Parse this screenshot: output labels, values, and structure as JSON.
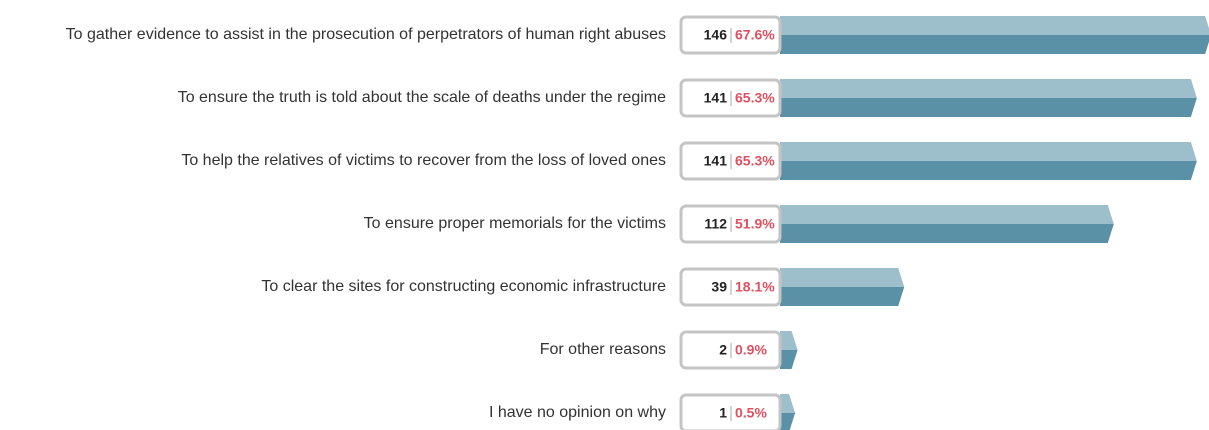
{
  "chart_data": {
    "type": "bar",
    "orientation": "horizontal",
    "categories": [
      "To gather evidence to assist in the prosecution of perpetrators of human right abuses",
      "To ensure the truth is told about the scale of deaths under the regime",
      "To help the relatives of victims to recover from the loss of loved ones",
      "To ensure proper memorials for the victims",
      "To clear the sites for constructing economic infrastructure",
      "For other reasons",
      "I have no opinion on why"
    ],
    "counts": [
      146,
      141,
      141,
      112,
      39,
      2,
      1
    ],
    "values": [
      67.6,
      65.3,
      65.3,
      51.9,
      18.1,
      0.9,
      0.5
    ],
    "value_labels": [
      "67.6%",
      "65.3%",
      "65.3%",
      "51.9%",
      "18.1%",
      "0.9%",
      "0.5%"
    ],
    "colors": {
      "light": "#9dbfcb",
      "dark": "#5a91a6"
    }
  }
}
